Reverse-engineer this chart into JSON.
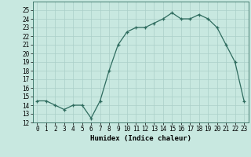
{
  "x": [
    0,
    1,
    2,
    3,
    4,
    5,
    6,
    7,
    8,
    9,
    10,
    11,
    12,
    13,
    14,
    15,
    16,
    17,
    18,
    19,
    20,
    21,
    22,
    23
  ],
  "y": [
    14.5,
    14.5,
    14.0,
    13.5,
    14.0,
    14.0,
    12.5,
    14.5,
    18.0,
    21.0,
    22.5,
    23.0,
    23.0,
    23.5,
    24.0,
    24.7,
    24.0,
    24.0,
    24.5,
    24.0,
    23.0,
    21.0,
    19.0,
    14.5
  ],
  "line_color": "#2e6b5e",
  "marker": "+",
  "bg_color": "#c8e8e0",
  "grid_color": "#aacfc8",
  "xlabel": "Humidex (Indice chaleur)",
  "ylim": [
    12,
    26
  ],
  "xlim": [
    -0.5,
    23.5
  ],
  "yticks": [
    12,
    13,
    14,
    15,
    16,
    17,
    18,
    19,
    20,
    21,
    22,
    23,
    24,
    25
  ],
  "xticks": [
    0,
    1,
    2,
    3,
    4,
    5,
    6,
    7,
    8,
    9,
    10,
    11,
    12,
    13,
    14,
    15,
    16,
    17,
    18,
    19,
    20,
    21,
    22,
    23
  ],
  "label_fontsize": 6.5,
  "tick_fontsize": 5.5
}
